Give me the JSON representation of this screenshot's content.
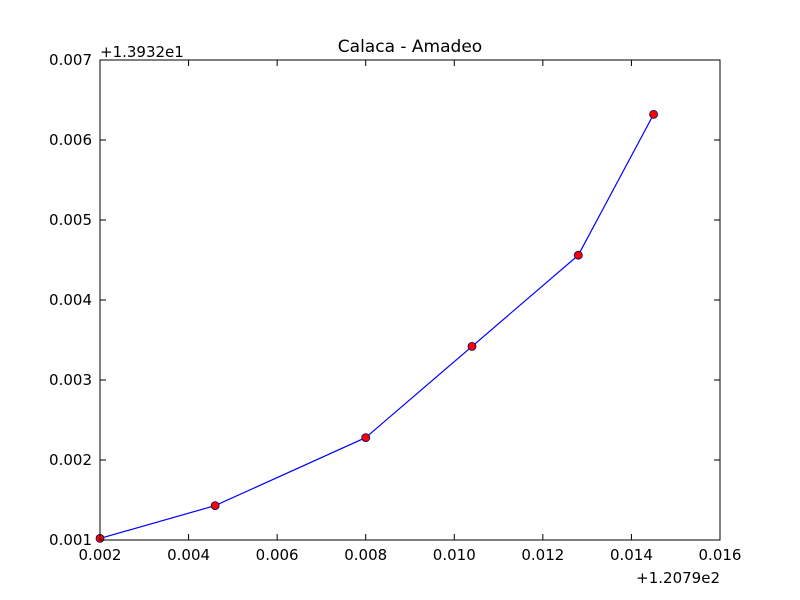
{
  "chart_data": {
    "type": "line",
    "title": "Calaca - Amadeo",
    "xlabel": "",
    "ylabel": "",
    "x_offset_label": "+1.2079e2",
    "y_offset_label": "+1.3932e1",
    "xlim": [
      0.002,
      0.016
    ],
    "ylim": [
      0.001,
      0.007
    ],
    "xticks": [
      0.002,
      0.004,
      0.006,
      0.008,
      0.01,
      0.012,
      0.014,
      0.016
    ],
    "xtick_labels": [
      "0.002",
      "0.004",
      "0.006",
      "0.008",
      "0.010",
      "0.012",
      "0.014",
      "0.016"
    ],
    "yticks": [
      0.001,
      0.002,
      0.003,
      0.004,
      0.005,
      0.006,
      0.007
    ],
    "ytick_labels": [
      "0.001",
      "0.002",
      "0.003",
      "0.004",
      "0.005",
      "0.006",
      "0.007"
    ],
    "grid": false,
    "series": [
      {
        "line_color": "#0000ff",
        "marker_color": "#ff0000",
        "x": [
          0.002,
          0.0046,
          0.008,
          0.0104,
          0.0128,
          0.0145
        ],
        "y": [
          0.00102,
          0.00143,
          0.00228,
          0.00342,
          0.00456,
          0.00632
        ]
      }
    ]
  }
}
